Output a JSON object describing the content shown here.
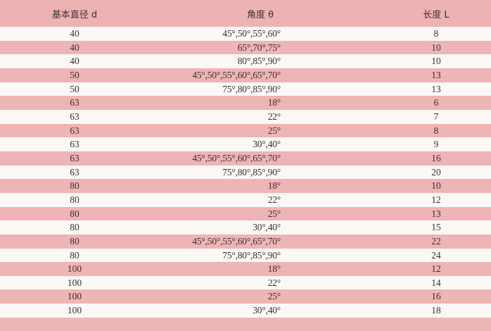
{
  "table": {
    "headers": [
      "基本直径 d",
      "角度 θ",
      "长度 L"
    ],
    "rows": [
      {
        "d": "40",
        "angle": "45°,50°,55°,60°",
        "L": "8"
      },
      {
        "d": "40",
        "angle": "65°,70°,75°",
        "L": "10"
      },
      {
        "d": "40",
        "angle": "80°,85°,90°",
        "L": "10"
      },
      {
        "d": "50",
        "angle": "45°,50°,55°,60°,65°,70°",
        "L": "13"
      },
      {
        "d": "50",
        "angle": "75°,80°,85°,90°",
        "L": "13"
      },
      {
        "d": "63",
        "angle": "18°",
        "L": "6"
      },
      {
        "d": "63",
        "angle": "22°",
        "L": "7"
      },
      {
        "d": "63",
        "angle": "25°",
        "L": "8"
      },
      {
        "d": "63",
        "angle": "30°,40°",
        "L": "9"
      },
      {
        "d": "63",
        "angle": "45°,50°,55°,60°,65°,70°",
        "L": "16"
      },
      {
        "d": "63",
        "angle": "75°,80°,85°,90°",
        "L": "20"
      },
      {
        "d": "80",
        "angle": "18°",
        "L": "10"
      },
      {
        "d": "80",
        "angle": "22°",
        "L": "12"
      },
      {
        "d": "80",
        "angle": "25°",
        "L": "13"
      },
      {
        "d": "80",
        "angle": "30°,40°",
        "L": "15"
      },
      {
        "d": "80",
        "angle": "45°,50°,55°,60°,65°,70°",
        "L": "22"
      },
      {
        "d": "80",
        "angle": "75°,80°,85°,90°",
        "L": "24"
      },
      {
        "d": "100",
        "angle": "18°",
        "L": "12"
      },
      {
        "d": "100",
        "angle": "22°",
        "L": "14"
      },
      {
        "d": "100",
        "angle": "25°",
        "L": "16"
      },
      {
        "d": "100",
        "angle": "30°,40°",
        "L": "18"
      }
    ]
  },
  "colors": {
    "stripe_pink": "#efb4b5",
    "stripe_white": "#fbf8f6",
    "text": "#3a3030"
  }
}
